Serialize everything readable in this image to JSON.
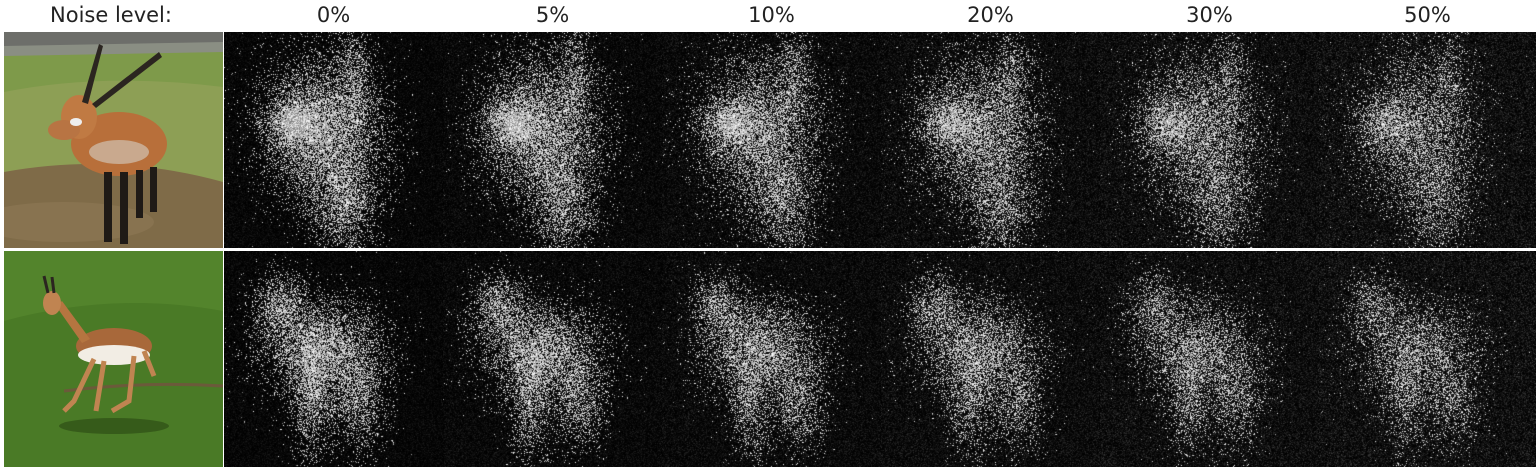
{
  "header": {
    "row_label": "Noise level:",
    "levels": [
      "0%",
      "5%",
      "10%",
      "20%",
      "30%",
      "50%"
    ]
  },
  "rows": [
    {
      "subject": "lechwe-antelope-on-grass"
    },
    {
      "subject": "springbok-running-on-grass"
    }
  ],
  "colors": {
    "background": "#ffffff",
    "map_background": "#070707"
  }
}
